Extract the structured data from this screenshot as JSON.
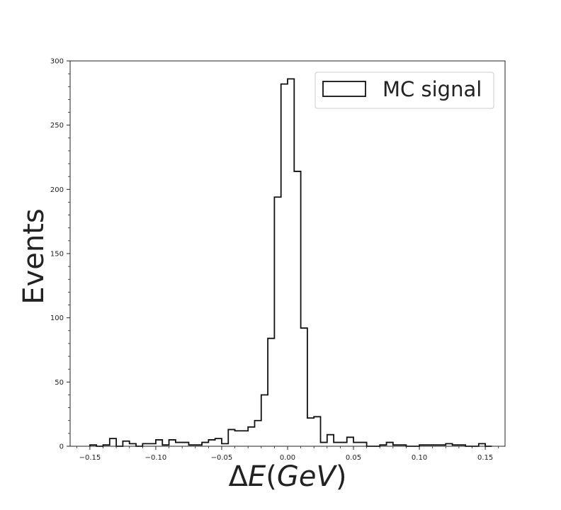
{
  "chart_data": {
    "type": "histogram",
    "xlabel_parts": {
      "delta": "Δ",
      "var": "E",
      "open": "(",
      "unit": "GeV",
      "close": ")"
    },
    "ylabel": "Events",
    "xlim": [
      -0.165,
      0.165
    ],
    "ylim": [
      0,
      300
    ],
    "x_ticks": [
      -0.15,
      -0.1,
      -0.05,
      0.0,
      0.05,
      0.1,
      0.15
    ],
    "x_tick_labels": [
      "−0.15",
      "−0.10",
      "−0.05",
      "0.00",
      "0.05",
      "0.10",
      "0.15"
    ],
    "y_ticks": [
      0,
      50,
      100,
      150,
      200,
      250,
      300
    ],
    "y_tick_labels": [
      "0",
      "50",
      "100",
      "150",
      "200",
      "250",
      "300"
    ],
    "bin_start": -0.15,
    "bin_width": 0.005,
    "series": [
      {
        "name": "MC signal",
        "style": "step",
        "color": "#111111",
        "values": [
          1,
          0,
          1,
          6,
          0,
          4,
          2,
          0,
          2,
          2,
          5,
          1,
          5,
          3,
          3,
          1,
          1,
          3,
          5,
          6,
          2,
          13,
          12,
          12,
          15,
          20,
          40,
          84,
          194,
          282,
          286,
          214,
          92,
          22,
          23,
          3,
          9,
          3,
          3,
          7,
          3,
          3,
          0,
          0,
          1,
          3,
          1,
          1,
          0,
          0,
          1,
          1,
          1,
          1,
          2,
          1,
          1,
          0,
          0,
          2,
          0
        ]
      }
    ],
    "legend": {
      "placement": "top-right",
      "entries": [
        "MC signal"
      ]
    },
    "grid": false
  }
}
